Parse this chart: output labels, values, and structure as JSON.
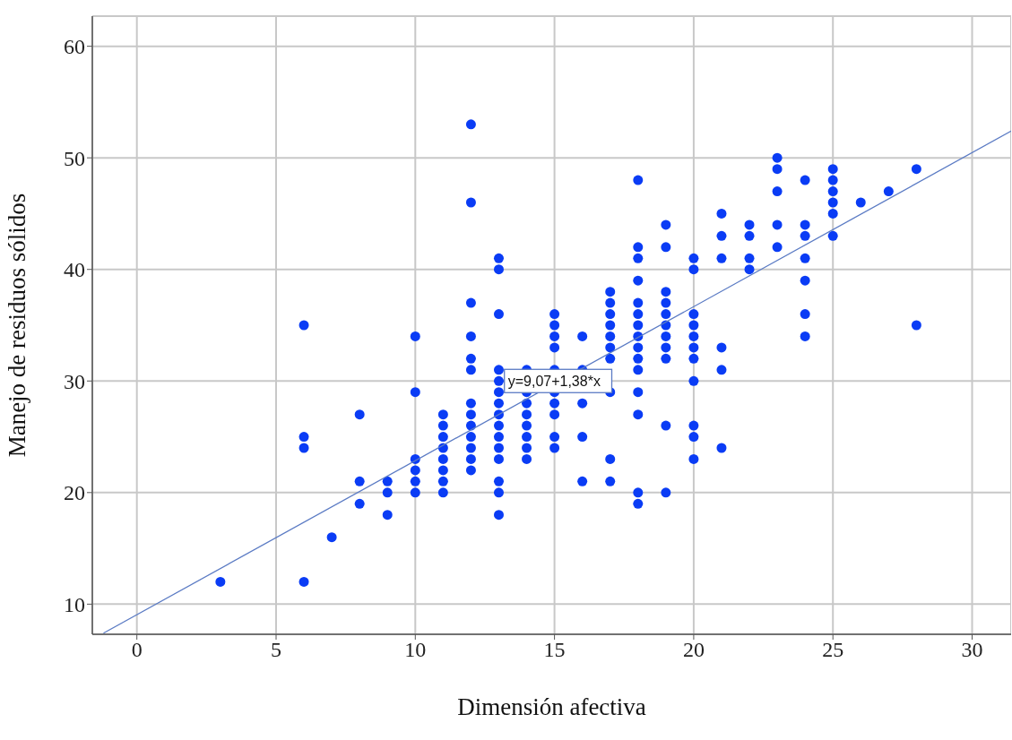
{
  "chart_data": {
    "type": "scatter",
    "xlabel": "Dimensión afectiva",
    "ylabel": "Manejo de residuos sólidos",
    "xlim": [
      -1.6,
      31.4
    ],
    "ylim": [
      7.3,
      62.7
    ],
    "xticks": [
      0,
      5,
      10,
      15,
      20,
      25,
      30
    ],
    "yticks": [
      10,
      20,
      30,
      40,
      50,
      60
    ],
    "grid": true,
    "legend": false,
    "marker": "circle",
    "annotations": [
      {
        "text": "y=9,07+1,38*x",
        "x": 13.2,
        "y": 30
      }
    ],
    "series": [
      {
        "type": "scatter",
        "color": "#0a3cf5",
        "x": [
          3,
          6,
          6,
          6,
          6,
          7,
          8,
          8,
          8,
          9,
          9,
          9,
          10,
          10,
          10,
          10,
          10,
          10,
          11,
          11,
          11,
          11,
          11,
          11,
          11,
          11,
          12,
          12,
          12,
          12,
          12,
          12,
          12,
          12,
          12,
          12,
          12,
          12,
          12,
          13,
          13,
          13,
          13,
          13,
          13,
          13,
          13,
          13,
          13,
          13,
          13,
          13,
          13,
          13,
          14,
          14,
          14,
          14,
          14,
          14,
          14,
          14,
          15,
          15,
          15,
          15,
          15,
          15,
          15,
          15,
          15,
          15,
          16,
          16,
          16,
          16,
          16,
          17,
          17,
          17,
          17,
          17,
          17,
          17,
          17,
          17,
          17,
          18,
          18,
          18,
          18,
          18,
          18,
          18,
          18,
          18,
          18,
          18,
          18,
          18,
          18,
          18,
          19,
          19,
          19,
          19,
          19,
          19,
          19,
          19,
          19,
          19,
          19,
          20,
          20,
          20,
          20,
          20,
          20,
          20,
          20,
          20,
          20,
          20,
          21,
          21,
          21,
          21,
          21,
          21,
          22,
          22,
          22,
          22,
          23,
          23,
          23,
          23,
          23,
          24,
          24,
          24,
          24,
          24,
          24,
          24,
          25,
          25,
          25,
          25,
          25,
          25,
          26,
          27,
          28,
          28
        ],
        "values": [
          12,
          35,
          25,
          24,
          12,
          16,
          27,
          21,
          19,
          21,
          20,
          18,
          34,
          29,
          23,
          22,
          21,
          20,
          27,
          26,
          25,
          24,
          23,
          22,
          21,
          20,
          53,
          46,
          37,
          34,
          32,
          31,
          28,
          27,
          26,
          25,
          24,
          23,
          22,
          41,
          40,
          36,
          31,
          30,
          29,
          28,
          27,
          26,
          25,
          24,
          23,
          21,
          20,
          18,
          31,
          29,
          28,
          27,
          26,
          25,
          24,
          23,
          36,
          35,
          34,
          33,
          31,
          29,
          28,
          27,
          25,
          24,
          34,
          31,
          28,
          25,
          21,
          38,
          37,
          36,
          35,
          34,
          33,
          32,
          29,
          23,
          21,
          48,
          42,
          41,
          39,
          37,
          36,
          35,
          34,
          33,
          32,
          31,
          29,
          27,
          20,
          19,
          44,
          42,
          38,
          37,
          36,
          35,
          34,
          33,
          32,
          26,
          20,
          41,
          40,
          36,
          35,
          34,
          33,
          32,
          30,
          26,
          25,
          23,
          45,
          43,
          41,
          33,
          31,
          24,
          44,
          43,
          41,
          40,
          50,
          49,
          47,
          44,
          42,
          48,
          44,
          43,
          41,
          39,
          36,
          34,
          49,
          48,
          47,
          46,
          45,
          43,
          46,
          47,
          49,
          35
        ]
      },
      {
        "type": "line",
        "color": "#5b7bc4",
        "x": [
          -1.2,
          31.4
        ],
        "values": [
          7.4,
          52.4
        ],
        "marker": "none"
      }
    ]
  }
}
